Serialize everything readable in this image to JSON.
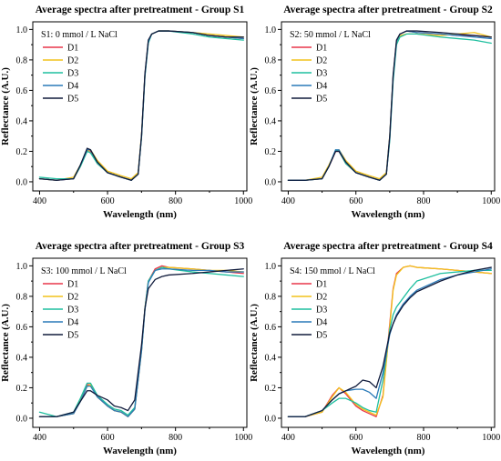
{
  "colors": {
    "D1": "#e8374a",
    "D2": "#f2c21b",
    "D3": "#1fbf9f",
    "D4": "#2a7ab8",
    "D5": "#101b3c"
  },
  "chart_data": [
    {
      "type": "line",
      "title": "Average spectra after pretreatment - Group S1",
      "annotation": "S1: 0 mmol / L NaCl",
      "xlabel": "Wavelength (nm)",
      "ylabel": "Reflectance (A.U.)",
      "xlim": [
        380,
        1010
      ],
      "ylim": [
        -0.06,
        1.05
      ],
      "xticks": [
        400,
        600,
        800,
        1000
      ],
      "xtick_labels": [
        "400",
        "600",
        "800",
        "1000"
      ],
      "yticks": [
        0.0,
        0.2,
        0.4,
        0.6,
        0.8,
        1.0
      ],
      "ytick_labels": [
        "0.0",
        "0.2",
        "0.4",
        "0.6",
        "0.8",
        "1.0"
      ],
      "legend_position": "top-left",
      "x": [
        400,
        450,
        500,
        520,
        540,
        550,
        570,
        600,
        640,
        670,
        690,
        700,
        710,
        720,
        730,
        750,
        780,
        850,
        900,
        950,
        1000
      ],
      "series": [
        {
          "name": "D1",
          "values": [
            0.02,
            0.01,
            0.02,
            0.1,
            0.21,
            0.2,
            0.12,
            0.06,
            0.03,
            0.01,
            0.05,
            0.3,
            0.7,
            0.92,
            0.97,
            0.99,
            0.99,
            0.98,
            0.96,
            0.95,
            0.94
          ]
        },
        {
          "name": "D2",
          "values": [
            0.02,
            0.01,
            0.03,
            0.11,
            0.2,
            0.21,
            0.14,
            0.07,
            0.04,
            0.02,
            0.06,
            0.31,
            0.7,
            0.92,
            0.97,
            0.99,
            0.99,
            0.98,
            0.97,
            0.96,
            0.95
          ]
        },
        {
          "name": "D3",
          "values": [
            0.03,
            0.02,
            0.02,
            0.1,
            0.2,
            0.19,
            0.12,
            0.06,
            0.03,
            0.01,
            0.05,
            0.29,
            0.69,
            0.91,
            0.97,
            0.99,
            0.99,
            0.97,
            0.95,
            0.94,
            0.93
          ]
        },
        {
          "name": "D4",
          "values": [
            0.02,
            0.01,
            0.02,
            0.11,
            0.21,
            0.21,
            0.13,
            0.06,
            0.03,
            0.01,
            0.05,
            0.3,
            0.7,
            0.92,
            0.97,
            0.99,
            0.99,
            0.98,
            0.96,
            0.95,
            0.94
          ]
        },
        {
          "name": "D5",
          "values": [
            0.02,
            0.01,
            0.02,
            0.11,
            0.22,
            0.21,
            0.13,
            0.06,
            0.03,
            0.01,
            0.05,
            0.3,
            0.71,
            0.93,
            0.97,
            0.99,
            0.99,
            0.98,
            0.96,
            0.95,
            0.95
          ]
        }
      ]
    },
    {
      "type": "line",
      "title": "Average spectra after pretreatment - Group S2",
      "annotation": "S2: 50 mmol / L NaCl",
      "xlabel": "Wavelength (nm)",
      "ylabel": "Reflectance (A.U.)",
      "xlim": [
        380,
        1010
      ],
      "ylim": [
        -0.06,
        1.05
      ],
      "xticks": [
        400,
        600,
        800,
        1000
      ],
      "xtick_labels": [
        "400",
        "600",
        "800",
        "1000"
      ],
      "yticks": [
        0.0,
        0.2,
        0.4,
        0.6,
        0.8,
        1.0
      ],
      "ytick_labels": [
        "0.0",
        "0.2",
        "0.4",
        "0.6",
        "0.8",
        "1.0"
      ],
      "legend_position": "top-left",
      "x": [
        400,
        450,
        500,
        520,
        540,
        550,
        570,
        600,
        640,
        670,
        690,
        700,
        710,
        720,
        730,
        750,
        780,
        850,
        900,
        950,
        1000
      ],
      "series": [
        {
          "name": "D1",
          "values": [
            0.01,
            0.01,
            0.02,
            0.1,
            0.2,
            0.2,
            0.12,
            0.06,
            0.03,
            0.01,
            0.05,
            0.28,
            0.68,
            0.92,
            0.97,
            0.99,
            0.98,
            0.97,
            0.96,
            0.96,
            0.95
          ]
        },
        {
          "name": "D2",
          "values": [
            0.01,
            0.01,
            0.03,
            0.11,
            0.2,
            0.21,
            0.14,
            0.07,
            0.04,
            0.02,
            0.06,
            0.3,
            0.69,
            0.92,
            0.96,
            0.97,
            0.97,
            0.96,
            0.97,
            0.98,
            0.95
          ]
        },
        {
          "name": "D3",
          "values": [
            0.01,
            0.01,
            0.02,
            0.1,
            0.21,
            0.2,
            0.12,
            0.06,
            0.03,
            0.01,
            0.05,
            0.27,
            0.66,
            0.9,
            0.95,
            0.97,
            0.97,
            0.95,
            0.94,
            0.93,
            0.91
          ]
        },
        {
          "name": "D4",
          "values": [
            0.01,
            0.01,
            0.02,
            0.1,
            0.21,
            0.21,
            0.13,
            0.06,
            0.03,
            0.01,
            0.05,
            0.29,
            0.69,
            0.92,
            0.97,
            0.99,
            0.98,
            0.97,
            0.96,
            0.95,
            0.94
          ]
        },
        {
          "name": "D5",
          "values": [
            0.01,
            0.01,
            0.02,
            0.1,
            0.2,
            0.2,
            0.13,
            0.06,
            0.03,
            0.01,
            0.05,
            0.3,
            0.7,
            0.93,
            0.97,
            0.99,
            0.99,
            0.98,
            0.97,
            0.96,
            0.95
          ]
        }
      ]
    },
    {
      "type": "line",
      "title": "Average spectra after pretreatment - Group S3",
      "annotation": "S3: 100 mmol / L NaCl",
      "xlabel": "Wavelength (nm)",
      "ylabel": "Reflectance (A.U.)",
      "xlim": [
        380,
        1010
      ],
      "ylim": [
        -0.06,
        1.05
      ],
      "xticks": [
        400,
        600,
        800,
        1000
      ],
      "xtick_labels": [
        "400",
        "600",
        "800",
        "1000"
      ],
      "yticks": [
        0.0,
        0.2,
        0.4,
        0.6,
        0.8,
        1.0
      ],
      "ytick_labels": [
        "0.0",
        "0.2",
        "0.4",
        "0.6",
        "0.8",
        "1.0"
      ],
      "legend_position": "top-left",
      "x": [
        400,
        450,
        500,
        520,
        540,
        550,
        570,
        600,
        620,
        640,
        660,
        680,
        700,
        710,
        720,
        740,
        760,
        780,
        850,
        900,
        950,
        1000
      ],
      "series": [
        {
          "name": "D1",
          "values": [
            0.01,
            0.01,
            0.03,
            0.12,
            0.22,
            0.22,
            0.14,
            0.08,
            0.05,
            0.04,
            0.01,
            0.06,
            0.45,
            0.72,
            0.9,
            0.98,
            1.0,
            0.99,
            0.98,
            0.97,
            0.96,
            0.95
          ]
        },
        {
          "name": "D2",
          "values": [
            0.01,
            0.01,
            0.03,
            0.12,
            0.21,
            0.22,
            0.14,
            0.08,
            0.05,
            0.04,
            0.01,
            0.06,
            0.44,
            0.72,
            0.9,
            0.97,
            0.99,
            0.99,
            0.98,
            0.97,
            0.97,
            0.96
          ]
        },
        {
          "name": "D3",
          "values": [
            0.04,
            0.01,
            0.04,
            0.13,
            0.23,
            0.23,
            0.15,
            0.09,
            0.06,
            0.05,
            0.02,
            0.07,
            0.45,
            0.72,
            0.9,
            0.97,
            0.99,
            0.98,
            0.96,
            0.95,
            0.94,
            0.93
          ]
        },
        {
          "name": "D4",
          "values": [
            0.01,
            0.01,
            0.03,
            0.11,
            0.21,
            0.21,
            0.14,
            0.08,
            0.05,
            0.04,
            0.01,
            0.06,
            0.44,
            0.71,
            0.89,
            0.97,
            0.98,
            0.98,
            0.97,
            0.97,
            0.96,
            0.96
          ]
        },
        {
          "name": "D5",
          "values": [
            0.01,
            0.01,
            0.04,
            0.11,
            0.18,
            0.18,
            0.15,
            0.12,
            0.08,
            0.07,
            0.05,
            0.12,
            0.48,
            0.72,
            0.85,
            0.91,
            0.93,
            0.94,
            0.95,
            0.96,
            0.97,
            0.98
          ]
        }
      ]
    },
    {
      "type": "line",
      "title": "Average spectra after pretreatment - Group S4",
      "annotation": "S4: 150 mmol / L NaCl",
      "xlabel": "Wavelength (nm)",
      "ylabel": "Reflectance (A.U.)",
      "xlim": [
        380,
        1010
      ],
      "ylim": [
        -0.06,
        1.05
      ],
      "xticks": [
        400,
        600,
        800,
        1000
      ],
      "xtick_labels": [
        "400",
        "600",
        "800",
        "1000"
      ],
      "yticks": [
        0.0,
        0.2,
        0.4,
        0.6,
        0.8,
        1.0
      ],
      "ytick_labels": [
        "0.0",
        "0.2",
        "0.4",
        "0.6",
        "0.8",
        "1.0"
      ],
      "legend_position": "top-left",
      "x": [
        400,
        450,
        500,
        530,
        550,
        570,
        600,
        620,
        640,
        660,
        680,
        700,
        710,
        720,
        740,
        760,
        780,
        850,
        900,
        950,
        1000
      ],
      "series": [
        {
          "name": "D1",
          "values": [
            0.01,
            0.01,
            0.04,
            0.15,
            0.2,
            0.16,
            0.08,
            0.05,
            0.03,
            0.01,
            0.15,
            0.62,
            0.85,
            0.95,
            0.99,
            1.0,
            0.99,
            0.98,
            0.97,
            0.96,
            0.95
          ]
        },
        {
          "name": "D2",
          "values": [
            0.01,
            0.01,
            0.04,
            0.14,
            0.2,
            0.17,
            0.09,
            0.06,
            0.04,
            0.02,
            0.14,
            0.6,
            0.84,
            0.94,
            0.99,
            1.0,
            0.99,
            0.98,
            0.97,
            0.96,
            0.95
          ]
        },
        {
          "name": "D3",
          "values": [
            0.01,
            0.01,
            0.05,
            0.1,
            0.13,
            0.13,
            0.1,
            0.07,
            0.05,
            0.04,
            0.25,
            0.58,
            0.68,
            0.73,
            0.79,
            0.85,
            0.9,
            0.95,
            0.96,
            0.97,
            0.97
          ]
        },
        {
          "name": "D4",
          "values": [
            0.01,
            0.01,
            0.05,
            0.12,
            0.16,
            0.18,
            0.19,
            0.19,
            0.17,
            0.13,
            0.3,
            0.55,
            0.62,
            0.68,
            0.75,
            0.8,
            0.84,
            0.91,
            0.94,
            0.96,
            0.98
          ]
        },
        {
          "name": "D5",
          "values": [
            0.01,
            0.01,
            0.05,
            0.12,
            0.16,
            0.18,
            0.21,
            0.25,
            0.24,
            0.2,
            0.34,
            0.56,
            0.62,
            0.67,
            0.74,
            0.79,
            0.83,
            0.9,
            0.94,
            0.97,
            0.99
          ]
        }
      ]
    }
  ]
}
